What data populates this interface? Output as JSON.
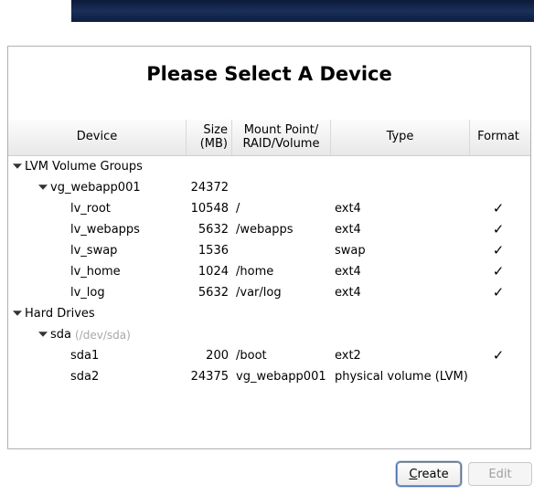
{
  "title": "Please Select A Device",
  "columns": {
    "device": "Device",
    "size": "Size\n(MB)",
    "mount": "Mount Point/\nRAID/Volume",
    "type": "Type",
    "format": "Format"
  },
  "checkmark": "✓",
  "groups": {
    "lvm_label": "LVM Volume Groups",
    "hd_label": "Hard Drives"
  },
  "vg": {
    "name": "vg_webapp001",
    "size": "24372",
    "lvs": [
      {
        "name": "lv_root",
        "size": "10548",
        "mount": "/",
        "type": "ext4",
        "fmt": true
      },
      {
        "name": "lv_webapps",
        "size": "5632",
        "mount": "/webapps",
        "type": "ext4",
        "fmt": true
      },
      {
        "name": "lv_swap",
        "size": "1536",
        "mount": "",
        "type": "swap",
        "fmt": true
      },
      {
        "name": "lv_home",
        "size": "1024",
        "mount": "/home",
        "type": "ext4",
        "fmt": true
      },
      {
        "name": "lv_log",
        "size": "5632",
        "mount": "/var/log",
        "type": "ext4",
        "fmt": true
      }
    ]
  },
  "disk": {
    "name": "sda",
    "devpath": "(/dev/sda)",
    "parts": [
      {
        "name": "sda1",
        "size": "200",
        "mount": "/boot",
        "type": "ext2",
        "fmt": true
      },
      {
        "name": "sda2",
        "size": "24375",
        "mount": "vg_webapp001",
        "type": "physical volume (LVM)",
        "fmt": false
      }
    ]
  },
  "buttons": {
    "create": "Create",
    "create_acc": "C",
    "create_rest": "reate",
    "edit": "Edit"
  },
  "style": {
    "indent0": 4,
    "indent1": 22,
    "indent2": 40,
    "indent3": 56,
    "indent_leaf": 68
  }
}
